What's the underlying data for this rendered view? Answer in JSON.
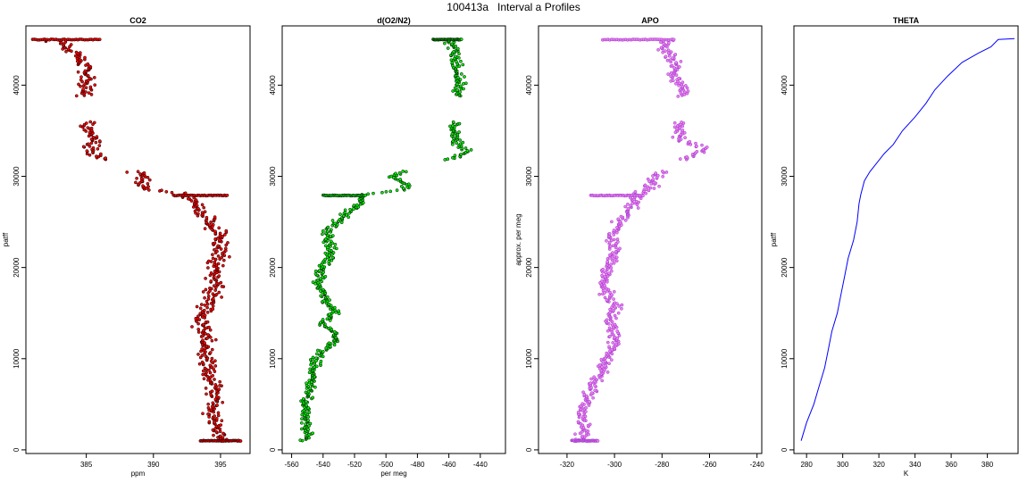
{
  "figure": {
    "title": "100413a   Interval a Profiles"
  },
  "chart_data": [
    {
      "type": "scatter",
      "title": "CO2",
      "xlabel": "ppm",
      "ylabel": "patff",
      "xlim": [
        380.5,
        397.2
      ],
      "ylim": [
        -400,
        46500
      ],
      "xticks": [
        385,
        390,
        395
      ],
      "yticks": [
        0,
        10000,
        20000,
        30000,
        40000
      ],
      "marker_fill": "#ff0000",
      "marker_edge": "#000000",
      "series": [
        {
          "profile": [
            [
              45000,
              382.5
            ],
            [
              44000,
              383.8
            ],
            [
              43000,
              384.5
            ],
            [
              42000,
              385.0
            ],
            [
              41000,
              385.1
            ],
            [
              40000,
              385.0
            ],
            [
              39000,
              384.8
            ],
            [
              35000,
              385.2
            ],
            [
              34000,
              385.6
            ],
            [
              32500,
              385.3
            ],
            [
              30000,
              389.5
            ],
            [
              29000,
              389.0
            ],
            [
              28500,
              390.0
            ],
            [
              28000,
              392.5
            ],
            [
              27000,
              393.0
            ],
            [
              26000,
              393.5
            ],
            [
              25000,
              394.2
            ],
            [
              24000,
              394.8
            ],
            [
              23000,
              395.0
            ],
            [
              22000,
              395.0
            ],
            [
              20000,
              394.6
            ],
            [
              18000,
              394.6
            ],
            [
              16000,
              394.2
            ],
            [
              14000,
              393.5
            ],
            [
              12000,
              393.8
            ],
            [
              10000,
              394.0
            ],
            [
              8000,
              394.3
            ],
            [
              6000,
              394.6
            ],
            [
              4000,
              394.4
            ],
            [
              2000,
              394.8
            ],
            [
              1000,
              395.0
            ]
          ],
          "scatter": 0.55,
          "bands": [
            {
              "y": 45000,
              "x1": 381.0,
              "x2": 386.0
            },
            {
              "y": 27900,
              "x1": 391.5,
              "x2": 395.5
            },
            {
              "y": 1000,
              "x1": 393.5,
              "x2": 396.5
            }
          ],
          "gaps": [
            [
              36000,
              38800
            ],
            [
              30600,
              31800
            ]
          ]
        }
      ]
    },
    {
      "type": "scatter",
      "title": "d(O2/N2)",
      "xlabel": "per meg",
      "ylabel": "",
      "xlim": [
        -566,
        -424
      ],
      "ylim": [
        -400,
        46500
      ],
      "xticks": [
        -560,
        -540,
        -520,
        -500,
        -480,
        -460,
        -440
      ],
      "yticks": [
        0,
        10000,
        20000,
        30000,
        40000
      ],
      "marker_fill": "#00ee00",
      "marker_edge": "#000000",
      "series": [
        {
          "profile": [
            [
              45000,
              -460
            ],
            [
              44000,
              -456
            ],
            [
              43000,
              -455
            ],
            [
              42000,
              -456
            ],
            [
              41000,
              -455
            ],
            [
              40000,
              -452
            ],
            [
              39000,
              -454
            ],
            [
              35000,
              -457
            ],
            [
              34000,
              -456
            ],
            [
              32500,
              -448
            ],
            [
              30000,
              -497
            ],
            [
              29000,
              -485
            ],
            [
              28500,
              -490
            ],
            [
              28000,
              -515
            ],
            [
              27000,
              -517
            ],
            [
              26000,
              -525
            ],
            [
              25000,
              -530
            ],
            [
              24000,
              -538
            ],
            [
              23000,
              -537
            ],
            [
              22000,
              -535
            ],
            [
              21000,
              -536
            ],
            [
              20000,
              -541
            ],
            [
              18000,
              -543
            ],
            [
              16000,
              -536
            ],
            [
              15000,
              -533
            ],
            [
              14000,
              -540
            ],
            [
              12000,
              -530
            ],
            [
              11000,
              -540
            ],
            [
              10000,
              -545
            ],
            [
              8000,
              -547
            ],
            [
              6000,
              -550
            ],
            [
              4000,
              -552
            ],
            [
              2000,
              -550
            ],
            [
              1000,
              -551
            ]
          ],
          "scatter": 3.0,
          "bands": [
            {
              "y": 45000,
              "x1": -470,
              "x2": -452
            },
            {
              "y": 27900,
              "x1": -540,
              "x2": -513
            }
          ],
          "gaps": [
            [
              36000,
              38800
            ],
            [
              30600,
              31800
            ]
          ]
        }
      ]
    },
    {
      "type": "scatter",
      "title": "APO",
      "xlabel": "",
      "ylabel": "approx. per meg",
      "xlim": [
        -332,
        -238
      ],
      "ylim": [
        -400,
        46500
      ],
      "xticks": [
        -320,
        -300,
        -280,
        -260,
        -240
      ],
      "yticks": [
        0,
        10000,
        20000,
        30000,
        40000
      ],
      "marker_fill": "#ee82ee",
      "marker_edge": "#9932cc",
      "series": [
        {
          "profile": [
            [
              45000,
              -278
            ],
            [
              44000,
              -278
            ],
            [
              43000,
              -276
            ],
            [
              42000,
              -274
            ],
            [
              41000,
              -276
            ],
            [
              40000,
              -272
            ],
            [
              39000,
              -270
            ],
            [
              35000,
              -273
            ],
            [
              34000,
              -273
            ],
            [
              33000,
              -262
            ],
            [
              30000,
              -283
            ],
            [
              29000,
              -284
            ],
            [
              28000,
              -290
            ],
            [
              27000,
              -292
            ],
            [
              26000,
              -295
            ],
            [
              25000,
              -298
            ],
            [
              24000,
              -300
            ],
            [
              23000,
              -301
            ],
            [
              22000,
              -300
            ],
            [
              21000,
              -300
            ],
            [
              20000,
              -303
            ],
            [
              18000,
              -305
            ],
            [
              16000,
              -300
            ],
            [
              14000,
              -302
            ],
            [
              12000,
              -299
            ],
            [
              10000,
              -303
            ],
            [
              8000,
              -307
            ],
            [
              6000,
              -311
            ],
            [
              4000,
              -314
            ],
            [
              2000,
              -313
            ],
            [
              1000,
              -315
            ]
          ],
          "scatter": 2.5,
          "bands": [
            {
              "y": 45000,
              "x1": -305,
              "x2": -275
            },
            {
              "y": 27900,
              "x1": -310,
              "x2": -288
            },
            {
              "y": 1000,
              "x1": -318,
              "x2": -307
            }
          ],
          "gaps": [
            [
              36000,
              38800
            ],
            [
              30600,
              31800
            ]
          ]
        }
      ]
    },
    {
      "type": "line",
      "title": "THETA",
      "xlabel": "K",
      "ylabel": "patff",
      "xlim": [
        273,
        397
      ],
      "ylim": [
        -400,
        46500
      ],
      "xticks": [
        280,
        300,
        320,
        340,
        360,
        380
      ],
      "yticks": [
        0,
        10000,
        20000,
        30000,
        40000
      ],
      "line_color": "#0000ff",
      "series": [
        {
          "points": [
            [
              277,
              1000
            ],
            [
              280,
              3000
            ],
            [
              284,
              5000
            ],
            [
              287,
              7000
            ],
            [
              290,
              9000
            ],
            [
              292,
              11000
            ],
            [
              294,
              13000
            ],
            [
              297,
              15000
            ],
            [
              299,
              17000
            ],
            [
              301,
              19000
            ],
            [
              303,
              21000
            ],
            [
              306,
              23000
            ],
            [
              308,
              25000
            ],
            [
              309,
              27000
            ],
            [
              310,
              28000
            ],
            [
              312,
              29500
            ],
            [
              315,
              30500
            ],
            [
              319,
              31500
            ],
            [
              323,
              32500
            ],
            [
              328,
              33500
            ],
            [
              333,
              35000
            ],
            [
              340,
              36500
            ],
            [
              346,
              38000
            ],
            [
              351,
              39500
            ],
            [
              358,
              41000
            ],
            [
              366,
              42500
            ],
            [
              375,
              43500
            ],
            [
              382,
              44200
            ],
            [
              386,
              45000
            ],
            [
              395,
              45100
            ]
          ]
        }
      ]
    }
  ]
}
